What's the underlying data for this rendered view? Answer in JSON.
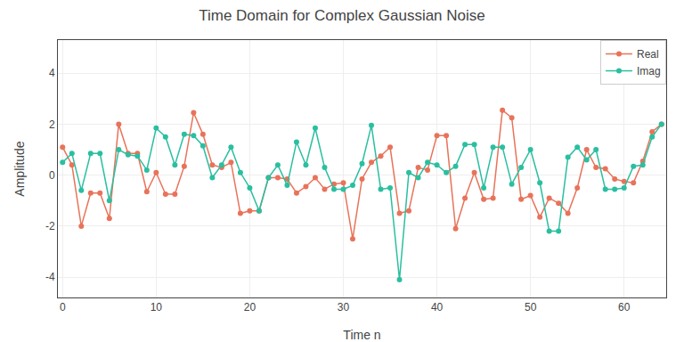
{
  "chart_data": {
    "type": "line",
    "title": "Time Domain for Complex Gaussian Noise",
    "xlabel": "Time n",
    "ylabel": "Amplitude",
    "x": [
      0,
      1,
      2,
      3,
      4,
      5,
      6,
      7,
      8,
      9,
      10,
      11,
      12,
      13,
      14,
      15,
      16,
      17,
      18,
      19,
      20,
      21,
      22,
      23,
      24,
      25,
      26,
      27,
      28,
      29,
      30,
      31,
      32,
      33,
      34,
      35,
      36,
      37,
      38,
      39,
      40,
      41,
      42,
      43,
      44,
      45,
      46,
      47,
      48,
      49,
      50,
      51,
      52,
      53,
      54,
      55,
      56,
      57,
      58,
      59,
      60,
      61,
      62,
      63,
      64
    ],
    "series": [
      {
        "name": "Real",
        "color": "#E8735A",
        "values": [
          1.1,
          0.4,
          -2.0,
          -0.7,
          -0.7,
          -1.7,
          2.0,
          0.85,
          0.85,
          -0.65,
          0.1,
          -0.75,
          -0.75,
          0.35,
          2.45,
          1.6,
          0.4,
          0.3,
          0.5,
          -1.5,
          -1.4,
          -1.4,
          -0.1,
          -0.1,
          -0.15,
          -0.7,
          -0.45,
          -0.1,
          -0.55,
          -0.35,
          -0.3,
          -2.5,
          -0.15,
          0.5,
          0.75,
          1.1,
          -1.5,
          -1.4,
          0.3,
          0.2,
          1.55,
          1.55,
          -2.1,
          -0.9,
          0.1,
          -0.95,
          -0.9,
          2.55,
          2.25,
          -0.95,
          -0.8,
          -1.65,
          -0.9,
          -1.1,
          -1.5,
          -0.5,
          1.0,
          0.3,
          0.25,
          -0.15,
          -0.25,
          -0.3,
          0.55,
          1.7,
          2.0
        ]
      },
      {
        "name": "Imag",
        "color": "#2ABFA0",
        "values": [
          0.5,
          0.85,
          -0.6,
          0.85,
          0.85,
          -1.0,
          1.0,
          0.8,
          0.75,
          0.2,
          1.85,
          1.5,
          0.4,
          1.6,
          1.55,
          1.15,
          -0.1,
          0.4,
          1.1,
          0.1,
          -0.5,
          -1.4,
          -0.1,
          0.4,
          -0.4,
          1.3,
          0.4,
          1.85,
          0.3,
          -0.55,
          -0.55,
          -0.4,
          0.45,
          1.95,
          -0.55,
          -0.5,
          -4.1,
          0.1,
          -0.1,
          0.5,
          0.4,
          0.1,
          0.35,
          1.2,
          1.2,
          -0.5,
          1.1,
          1.1,
          -0.35,
          0.3,
          1.0,
          -0.3,
          -2.2,
          -2.2,
          0.7,
          1.1,
          0.6,
          1.0,
          -0.55,
          -0.55,
          -0.5,
          0.35,
          0.4,
          1.5,
          2.0
        ]
      }
    ],
    "marker": "circle",
    "xlim": [
      -0.5,
      64.5
    ],
    "xticks": [
      0,
      10,
      20,
      30,
      40,
      50,
      60
    ],
    "ylim": [
      -4.8,
      5.3
    ],
    "yticks": [
      -4,
      -2,
      0,
      2,
      4
    ],
    "grid": true,
    "legend": "upper right"
  }
}
